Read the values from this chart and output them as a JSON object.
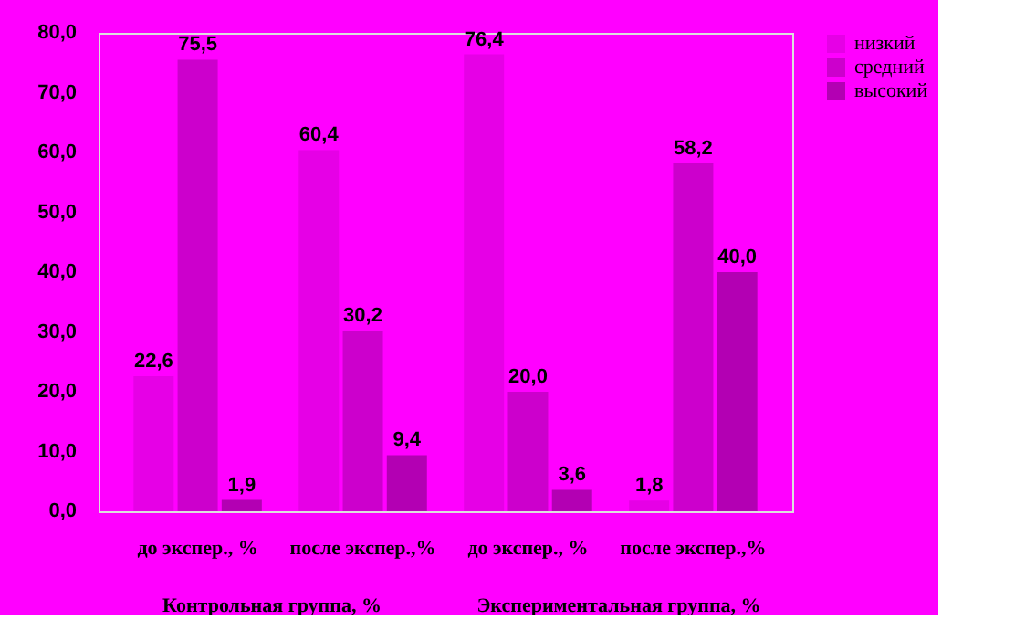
{
  "chart_data": {
    "type": "bar",
    "categories": [
      "до экспер., %",
      "после экспер.,%",
      "до экспер., %",
      "после экспер.,%"
    ],
    "series": [
      {
        "name": "низкий",
        "color": "#e600e6",
        "values": [
          22.6,
          60.4,
          76.4,
          1.8
        ],
        "value_labels": [
          "22,6",
          "60,4",
          "76,4",
          "1,8"
        ]
      },
      {
        "name": "средний",
        "color": "#cc00cc",
        "values": [
          75.5,
          30.2,
          20.0,
          58.2
        ],
        "value_labels": [
          "75,5",
          "30,2",
          "20,0",
          "58,2"
        ]
      },
      {
        "name": "высокий",
        "color": "#b300b3",
        "values": [
          1.9,
          9.4,
          3.6,
          40.0
        ],
        "value_labels": [
          "1,9",
          "9,4",
          "3,6",
          "40,0"
        ]
      }
    ],
    "ylim": [
      0,
      80
    ],
    "yticks": [
      {
        "value": 0,
        "label": "0,0"
      },
      {
        "value": 10,
        "label": "10,0"
      },
      {
        "value": 20,
        "label": "20,0"
      },
      {
        "value": 30,
        "label": "30,0"
      },
      {
        "value": 40,
        "label": "40,0"
      },
      {
        "value": 50,
        "label": "50,0"
      },
      {
        "value": 60,
        "label": "60,0"
      },
      {
        "value": 70,
        "label": "70,0"
      },
      {
        "value": 80,
        "label": "80,0"
      }
    ],
    "annotations": [
      "Контрольная группа, %",
      "Экспериментальная группа, %"
    ],
    "legend": "right",
    "grid": false
  }
}
